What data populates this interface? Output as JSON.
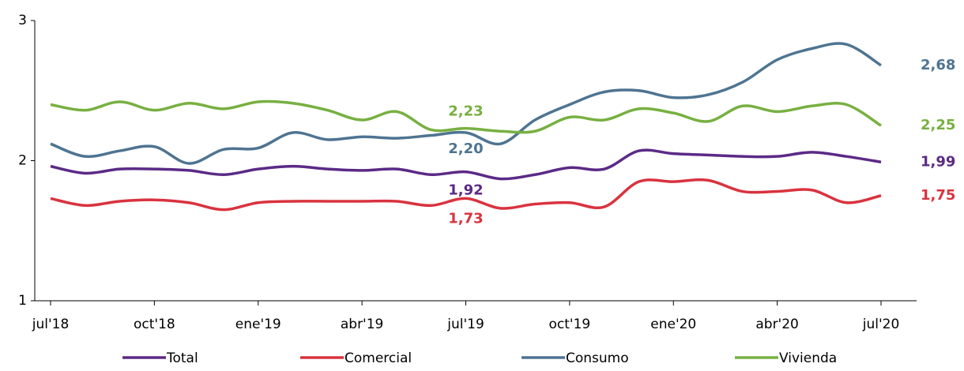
{
  "chart_data": {
    "type": "line",
    "categories": [
      "jul'18",
      null,
      null,
      "oct'18",
      null,
      null,
      "ene'19",
      null,
      null,
      "abr'19",
      null,
      null,
      "jul'19",
      null,
      null,
      "oct'19",
      null,
      null,
      "ene'20",
      null,
      null,
      "abr'20",
      null,
      null,
      "jul'20"
    ],
    "series": [
      {
        "name": "Total",
        "color": "#5b2a86",
        "values": [
          1.96,
          1.91,
          1.94,
          1.94,
          1.93,
          1.9,
          1.94,
          1.96,
          1.94,
          1.93,
          1.94,
          1.9,
          1.92,
          1.87,
          1.9,
          1.95,
          1.94,
          2.07,
          2.05,
          2.04,
          2.03,
          2.03,
          2.06,
          2.03,
          1.99
        ],
        "value_labels": [
          null,
          null,
          null,
          null,
          null,
          null,
          null,
          null,
          null,
          null,
          null,
          null,
          "1,92",
          null,
          null,
          null,
          null,
          null,
          null,
          null,
          null,
          null,
          null,
          null,
          "1,99"
        ]
      },
      {
        "name": "Comercial",
        "color": "#d9333f",
        "values": [
          1.73,
          1.68,
          1.71,
          1.72,
          1.7,
          1.65,
          1.7,
          1.71,
          1.71,
          1.71,
          1.71,
          1.68,
          1.73,
          1.66,
          1.69,
          1.7,
          1.67,
          1.85,
          1.85,
          1.86,
          1.78,
          1.78,
          1.79,
          1.7,
          1.75
        ],
        "value_labels": [
          null,
          null,
          null,
          null,
          null,
          null,
          null,
          null,
          null,
          null,
          null,
          null,
          "1,73",
          null,
          null,
          null,
          null,
          null,
          null,
          null,
          null,
          null,
          null,
          null,
          "1,75"
        ]
      },
      {
        "name": "Consumo",
        "color": "#4e7491",
        "values": [
          2.12,
          2.03,
          2.07,
          2.1,
          1.98,
          2.08,
          2.09,
          2.2,
          2.15,
          2.17,
          2.16,
          2.18,
          2.2,
          2.12,
          2.29,
          2.4,
          2.49,
          2.5,
          2.45,
          2.47,
          2.56,
          2.72,
          2.8,
          2.83,
          2.68
        ],
        "value_labels": [
          null,
          null,
          null,
          null,
          null,
          null,
          null,
          null,
          null,
          null,
          null,
          null,
          "2,20",
          null,
          null,
          null,
          null,
          null,
          null,
          null,
          null,
          null,
          null,
          null,
          "2,68"
        ]
      },
      {
        "name": "Vivienda",
        "color": "#77b041",
        "values": [
          2.4,
          2.36,
          2.42,
          2.36,
          2.41,
          2.37,
          2.42,
          2.41,
          2.36,
          2.29,
          2.35,
          2.22,
          2.23,
          2.21,
          2.21,
          2.31,
          2.29,
          2.37,
          2.34,
          2.28,
          2.39,
          2.35,
          2.39,
          2.4,
          2.25
        ],
        "value_labels": [
          null,
          null,
          null,
          null,
          null,
          null,
          null,
          null,
          null,
          null,
          null,
          null,
          "2,23",
          null,
          null,
          null,
          null,
          null,
          null,
          null,
          null,
          null,
          null,
          null,
          "2,25"
        ]
      }
    ],
    "ylim": [
      1,
      3
    ],
    "yticks": [
      1,
      2,
      3
    ],
    "grid": false,
    "legend": "bottom"
  }
}
